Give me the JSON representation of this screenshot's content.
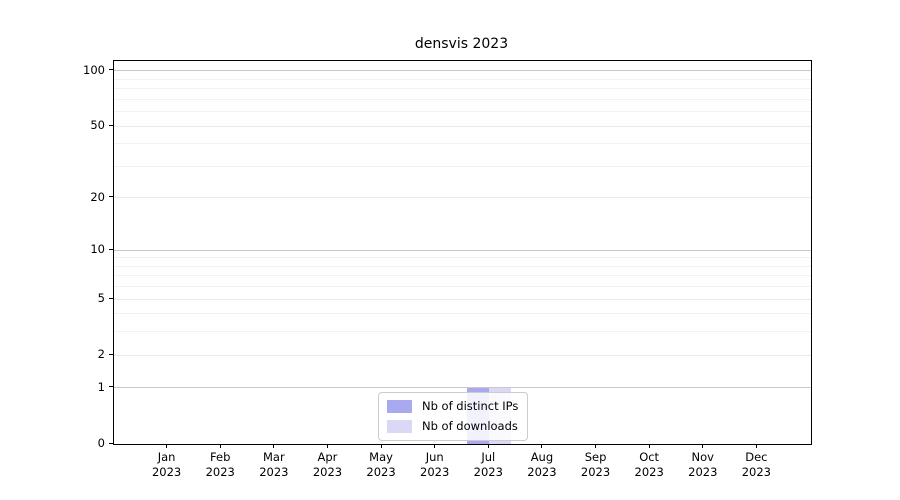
{
  "palette": {
    "background": "#ffffff",
    "spine": "#000000",
    "text": "#000000",
    "grid_major": "#e9e9e9",
    "grid_emphasized": "#c8c8c8",
    "grid_minor": "#f2f2f2",
    "series_ips": "#a9a9ef",
    "series_downloads": "#d9d9f6",
    "legend_border": "#cccccc"
  },
  "chart_data": {
    "type": "bar",
    "title": "densvis 2023",
    "categories": [
      "Jan",
      "Feb",
      "Mar",
      "Apr",
      "May",
      "Jun",
      "Jul",
      "Aug",
      "Sep",
      "Oct",
      "Nov",
      "Dec"
    ],
    "x_year": "2023",
    "series": [
      {
        "name": "Nb of distinct IPs",
        "color": "#a9a9ef",
        "values": [
          0,
          0,
          0,
          0,
          0,
          0,
          1,
          0,
          0,
          0,
          0,
          0
        ]
      },
      {
        "name": "Nb of downloads",
        "color": "#d9d9f6",
        "values": [
          0,
          0,
          0,
          0,
          0,
          0,
          1,
          0,
          0,
          0,
          0,
          0
        ]
      }
    ],
    "xlabel": "",
    "ylabel": "",
    "yscale": "log1p",
    "ylim": [
      0,
      113
    ],
    "y_ticks": [
      0,
      1,
      2,
      5,
      10,
      20,
      50,
      100
    ],
    "y_minor_gridlines": [
      3,
      4,
      6,
      7,
      8,
      9,
      30,
      40,
      60,
      70,
      80,
      90
    ],
    "y_emphasized_gridlines": [
      1,
      10,
      100
    ],
    "grid": "horizontal",
    "legend_position": "lower center, inside axes"
  },
  "legend": {
    "items": [
      {
        "label": "Nb of distinct IPs"
      },
      {
        "label": "Nb of downloads"
      }
    ]
  }
}
